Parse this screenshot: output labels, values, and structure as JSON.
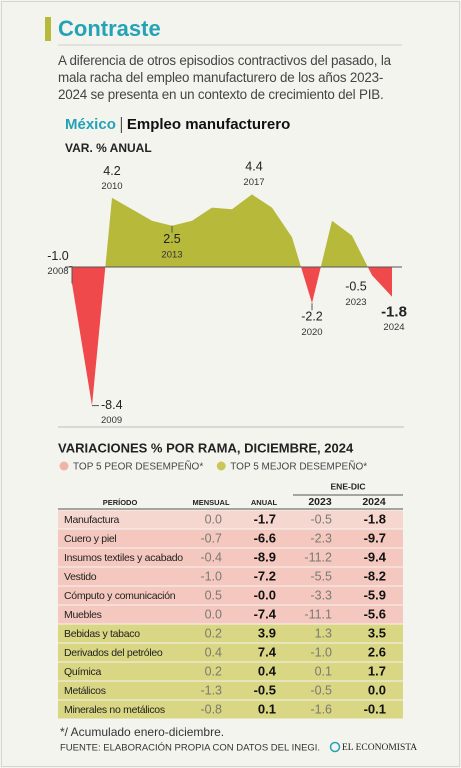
{
  "header": {
    "title": "Contraste",
    "intro": "A diferencia de otros episodios contractivos del pasado, la mala racha del empleo manufacturero de los años 2023-2024 se presenta en un contexto de crecimiento del PIB."
  },
  "chart_data": {
    "type": "area",
    "country": "México",
    "title": "Empleo manufacturero",
    "ylabel": "VAR. % ANUAL",
    "categories": [
      "2008",
      "2009",
      "2010",
      null,
      null,
      "2013",
      null,
      null,
      null,
      "2017",
      null,
      null,
      "2020",
      null,
      null,
      "2023",
      "2024"
    ],
    "values": [
      -1.0,
      -8.4,
      4.2,
      3.5,
      2.8,
      2.5,
      2.8,
      3.6,
      3.5,
      4.4,
      3.6,
      1.8,
      -2.2,
      2.8,
      1.9,
      -0.5,
      -1.8
    ],
    "value_labels": [
      "-1.0",
      "-8.4",
      "4.2",
      null,
      null,
      "2.5",
      null,
      null,
      null,
      "4.4",
      null,
      null,
      "-2.2",
      null,
      null,
      "-0.5",
      "-1.8"
    ],
    "positive_color": "#b7b93b",
    "negative_color": "#f0494c",
    "ylim": [
      -9,
      5
    ]
  },
  "table": {
    "title": "VARIACIONES % POR RAMA, DICIEMBRE, 2024",
    "legend": [
      {
        "label": "TOP 5 PEOR DESEMPEÑO*",
        "color": "#f4b3aa"
      },
      {
        "label": "TOP 5 MEJOR DESEMPEÑO*",
        "color": "#c9c65a"
      }
    ],
    "group_header": "ENE-DIC",
    "columns": [
      "PERÍODO",
      "MENSUAL",
      "ANUAL",
      "2023",
      "2024"
    ],
    "rows": [
      [
        "Manufactura",
        "0.0",
        "-1.7",
        "-0.5",
        "-1.8"
      ],
      [
        "Cuero y piel",
        "-0.7",
        "-6.6",
        "-2.3",
        "-9.7"
      ],
      [
        "Insumos textiles y acabado",
        "-0.4",
        "-8.9",
        "-11.2",
        "-9.4"
      ],
      [
        "Vestido",
        "-1.0",
        "-7.2",
        "-5.5",
        "-8.2"
      ],
      [
        "Cómputo y comunicación",
        "0.5",
        "-0.0",
        "-3.3",
        "-5.9"
      ],
      [
        "Muebles",
        "0.0",
        "-7.4",
        "-11.1",
        "-5.6"
      ],
      [
        "Bebidas y tabaco",
        "0.2",
        "3.9",
        "1.3",
        "3.5"
      ],
      [
        "Derivados del petróleo",
        "0.4",
        "7.4",
        "-1.0",
        "2.6"
      ],
      [
        "Química",
        "0.2",
        "0.4",
        "0.1",
        "1.7"
      ],
      [
        "Metálicos",
        "-1.3",
        "-0.5",
        "-0.5",
        "0.0"
      ],
      [
        "Minerales no metálicos",
        "-0.8",
        "0.1",
        "-1.6",
        "-0.1"
      ]
    ]
  },
  "footnote": "*/ Acumulado enero-diciembre.",
  "source": "FUENTE: ELABORACIÓN PROPIA CON DATOS DEL INEGI.",
  "logo": "EL ECONOMISTA"
}
